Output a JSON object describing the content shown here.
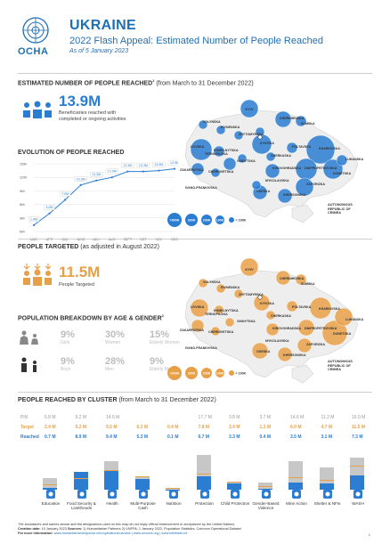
{
  "header": {
    "org": "OCHA",
    "title": "UKRAINE",
    "subtitle": "2022 Flash Appeal: Estimated Number of People Reached",
    "as_of": "As of 5 January 2023"
  },
  "reached": {
    "section_title": "ESTIMATED NUMBER OF PEOPLE REACHED",
    "section_sup": "1",
    "section_note": "(from March to 31 December 2022)",
    "big_number": "13.9M",
    "big_label_1": "Beneficiaries reached with",
    "big_label_2": "completed or ongoing activities"
  },
  "evolution": {
    "title": "EVOLUTION OF PEOPLE REACHED",
    "y_ticks": [
      "15M",
      "12M",
      "9M",
      "6M",
      "3M",
      "0M"
    ]
  },
  "chart_data": {
    "type": "line",
    "title": "EVOLUTION OF PEOPLE REACHED",
    "categories": [
      "MAR",
      "APR",
      "MAY",
      "JUNE",
      "JULY",
      "AUG",
      "SEPT",
      "OCT",
      "NOV",
      "DEC"
    ],
    "values": [
      1.4,
      4.0,
      7.0,
      10.3,
      11.3,
      12.0,
      13.3,
      13.3,
      13.5,
      13.9
    ],
    "value_labels": [
      "1.4M",
      "4.0M",
      "7.0M",
      "10.3M",
      "11.3M",
      "12.0M",
      "13.3M",
      "13.3M",
      "13.5M",
      "13.9M"
    ],
    "ylim": [
      0,
      15
    ],
    "grid": true
  },
  "map": {
    "kyiv_label": "KYIV",
    "regions": [
      "VOLYNSKA",
      "RIVNENSKA",
      "ZHYTOMYRSKA",
      "CHERNIHIVSKA",
      "SUMSKA",
      "LVIVSKA",
      "KHMELNYTSKA",
      "TERNOPILSKA",
      "KYIVSKA",
      "POLTAVSKA",
      "KHARKIVSKA",
      "ZAKARPATSKA",
      "CHERNIVETSKA",
      "VINNYTSKA",
      "CHERKASKA",
      "KIROVOHRADSKA",
      "DNIPROPETROVSKA",
      "LUHANSKA",
      "DONETSKA",
      "MYKOLAIVSKA",
      "ZAPORIZKA",
      "ODESKA",
      "KHERSONSKA",
      "IVANO-FRANKIVSKA"
    ],
    "crimea_label_1": "AUTONOMOUS",
    "crimea_label_2": "REPUBLIC OF",
    "crimea_label_3": "CRIMEA",
    "legend": [
      ">500K",
      "300K",
      "200K",
      "100K",
      "< 100K"
    ],
    "reached_color": "#2a7dd1",
    "targeted_color": "#e8a048"
  },
  "targeted": {
    "section_title": "PEOPLE TARGETED",
    "section_note": "(as adjusted in August 2022)",
    "big_number": "11.5M",
    "big_label": "People Targeted"
  },
  "breakdown": {
    "section_title": "POPULATION BREAKDOWN BY AGE & GENDER",
    "section_sup": "2",
    "female": [
      {
        "pct": "9%",
        "label": "Girls"
      },
      {
        "pct": "30%",
        "label": "Women"
      },
      {
        "pct": "15%",
        "label": "Elderly Women"
      }
    ],
    "male": [
      {
        "pct": "9%",
        "label": "Boys"
      },
      {
        "pct": "28%",
        "label": "Men"
      },
      {
        "pct": "9%",
        "label": "Elderly Men"
      }
    ]
  },
  "clusters": {
    "section_title": "PEOPLE REACHED BY CLUSTER",
    "section_note": "(from March to 31 December 2022)",
    "row_labels": {
      "pin": "PiN",
      "target": "Target",
      "reached": "Reached"
    },
    "items": [
      {
        "name": "Education",
        "icon": "education-icon",
        "pin": "5.8 M",
        "target": "2.4 M",
        "reached": "0.7 M",
        "pin_v": 5.8,
        "target_v": 2.4,
        "reached_v": 0.7
      },
      {
        "name": "Food Security & Livelihoods",
        "icon": "food-security-icon",
        "pin": "9.2 M",
        "target": "5.2 M",
        "reached": "8.9 M",
        "pin_v": 9.2,
        "target_v": 5.2,
        "reached_v": 8.9
      },
      {
        "name": "Health",
        "icon": "health-icon",
        "pin": "14.5 M",
        "target": "9.5 M",
        "reached": "9.4 M",
        "pin_v": 14.5,
        "target_v": 9.5,
        "reached_v": 9.4
      },
      {
        "name": "Multi-Purpose Cash",
        "icon": "cash-icon",
        "pin": "",
        "target": "6.3 M",
        "reached": "5.3 M",
        "pin_v": 0,
        "target_v": 6.3,
        "reached_v": 5.3
      },
      {
        "name": "Nutrition",
        "icon": "nutrition-icon",
        "pin": "",
        "target": "0.4 M",
        "reached": "0.1 M",
        "pin_v": 0,
        "target_v": 0.4,
        "reached_v": 0.1
      },
      {
        "name": "Protection",
        "icon": "protection-icon",
        "pin": "17.7 M",
        "target": "7.8 M",
        "reached": "6.7 M",
        "pin_v": 17.7,
        "target_v": 7.8,
        "reached_v": 6.7
      },
      {
        "name": "Child Protection",
        "icon": "child-protection-icon",
        "pin": "3.8 M",
        "target": "3.4 M",
        "reached": "3.3 M",
        "pin_v": 3.8,
        "target_v": 3.4,
        "reached_v": 3.3
      },
      {
        "name": "Gender-Based Violence",
        "icon": "gbv-icon",
        "pin": "3.7 M",
        "target": "1.3 M",
        "reached": "0.4 M",
        "pin_v": 3.7,
        "target_v": 1.3,
        "reached_v": 0.4
      },
      {
        "name": "Mine Action",
        "icon": "mine-action-icon",
        "pin": "14.6 M",
        "target": "6.0 M",
        "reached": "3.5 M",
        "pin_v": 14.6,
        "target_v": 6.0,
        "reached_v": 3.5
      },
      {
        "name": "Shelter & NFIs",
        "icon": "shelter-icon",
        "pin": "11.2 M",
        "target": "4.7 M",
        "reached": "3.1 M",
        "pin_v": 11.2,
        "target_v": 4.7,
        "reached_v": 3.1
      },
      {
        "name": "WASH",
        "icon": "wash-icon",
        "pin": "16.0 M",
        "target": "11.5 M",
        "reached": "7.3 M",
        "pin_v": 16.0,
        "target_v": 11.5,
        "reached_v": 7.3
      }
    ]
  },
  "footer": {
    "disclaimer": "The boundaries and names shown and the designations used on this map do not imply official endorsement or acceptance by the United Nations.",
    "creation_label": "Creation date:",
    "creation_date": "10 January 2023",
    "sources_label": "Sources:",
    "sources": "1) Humanitarian Partners 2) UNFPA, 1 January 2022, Population Statistics, Common Operational Dataset",
    "info_label": "For more information:",
    "links": "www.humanitarianresponse.info/operations/ukraine | www.unocha.org | www.reliefweb.int",
    "page": "1"
  }
}
